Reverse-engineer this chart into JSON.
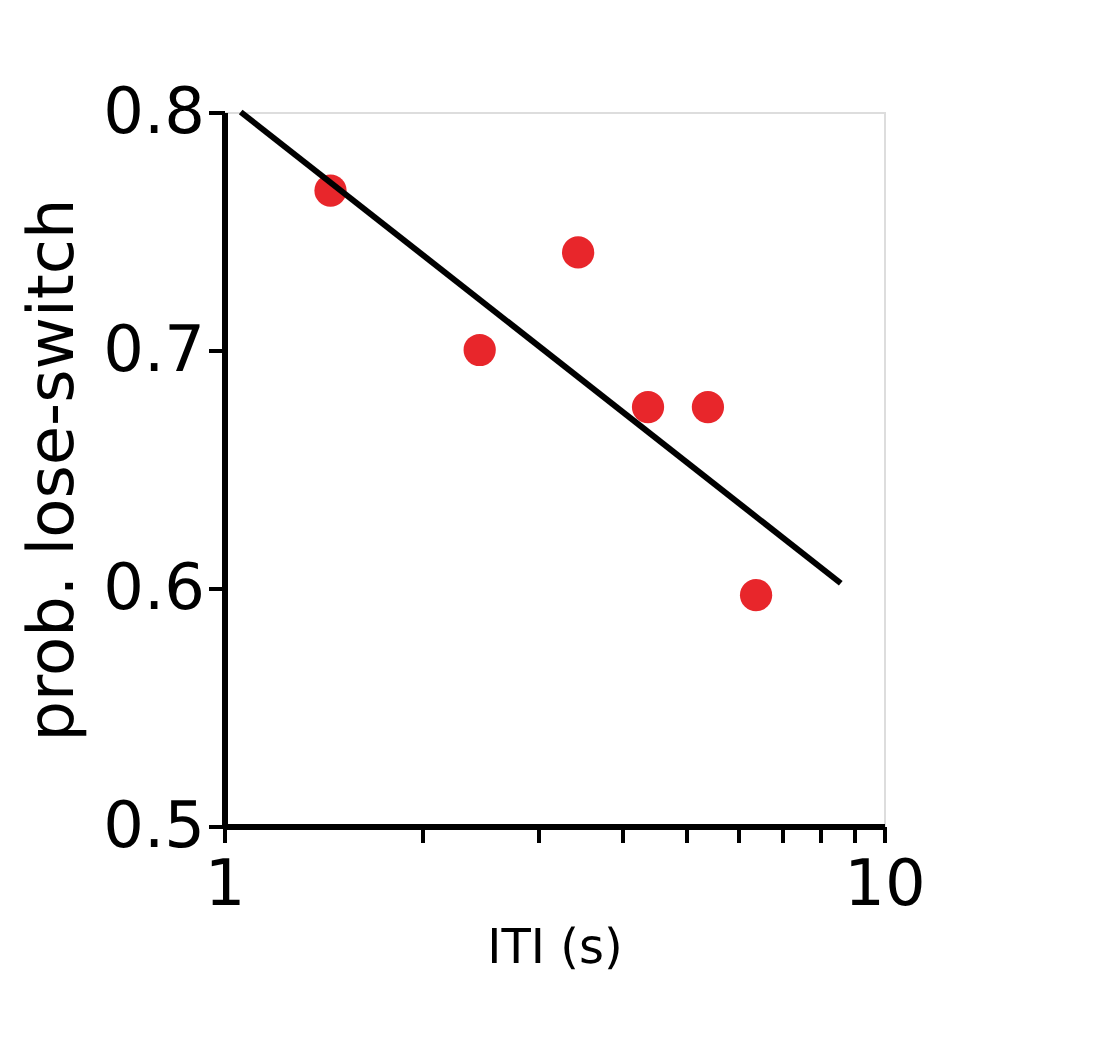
{
  "chart_data": {
    "type": "scatter",
    "xlabel": "ITI (s)",
    "ylabel": "prob. lose-switch",
    "log": "x",
    "xlim": [
      1,
      10
    ],
    "ylim": [
      0.5,
      0.8
    ],
    "xticks": [
      1,
      {
        "value": 2,
        "label": null
      },
      {
        "value": 3,
        "label": null
      },
      {
        "value": 4,
        "label": null
      },
      {
        "value": 5,
        "label": null
      },
      {
        "value": 6,
        "label": null
      },
      {
        "value": 7,
        "label": null
      },
      {
        "value": 8,
        "label": null
      },
      {
        "value": 9,
        "label": null
      },
      10
    ],
    "yticks": [
      0.5,
      0.6,
      0.7,
      0.8
    ],
    "grid": false,
    "marker": "circle",
    "series": [
      {
        "color": "#e8262b",
        "x": [
          1.45,
          2.44,
          3.44,
          4.39,
          5.41,
          6.4
        ],
        "values": [
          0.767,
          0.7,
          0.741,
          0.676,
          0.676,
          0.597
        ]
      },
      {
        "type": "line",
        "marker": "none",
        "color": "#000000",
        "x": [
          1.06,
          8.6
        ],
        "values": [
          0.8,
          0.602
        ]
      }
    ]
  }
}
